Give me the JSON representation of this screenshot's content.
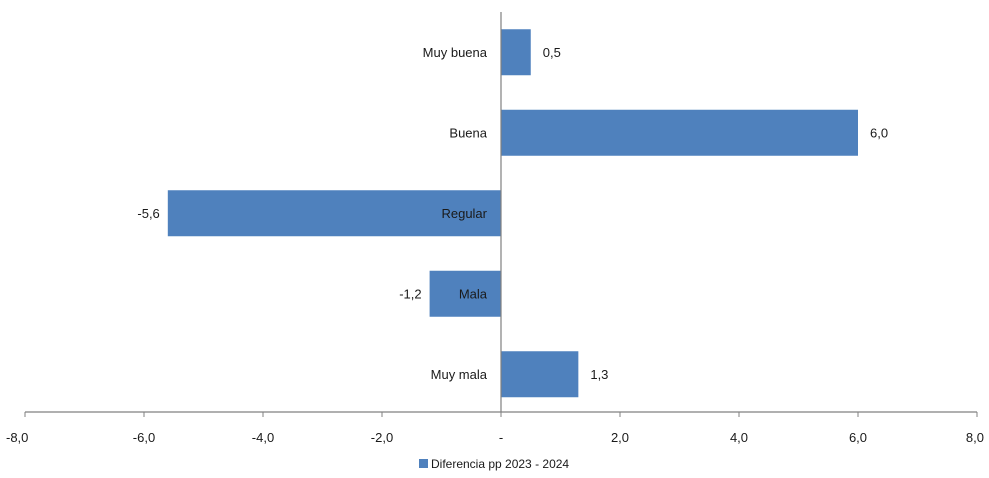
{
  "chart_data": {
    "type": "bar",
    "orientation": "horizontal",
    "categories": [
      "Muy buena",
      "Buena",
      "Regular",
      "Mala",
      "Muy mala"
    ],
    "series": [
      {
        "name": "Diferencia pp 2023 - 2024",
        "values": [
          0.5,
          6.0,
          -5.6,
          -1.2,
          1.3
        ],
        "value_labels": [
          "0,5",
          "6,0",
          "-5,6",
          "-1,2",
          "1,3"
        ],
        "color": "#4f81bd"
      }
    ],
    "xlim": [
      -8,
      8
    ],
    "x_ticks": [
      -8,
      -6,
      -4,
      -2,
      0,
      2,
      4,
      6,
      8
    ],
    "x_tick_labels": [
      "-8,0",
      "-6,0",
      "-4,0",
      "-2,0",
      "-",
      "2,0",
      "4,0",
      "6,0",
      "8,0"
    ],
    "legend_position": "bottom",
    "grid": false,
    "axis_color": "#808080"
  }
}
